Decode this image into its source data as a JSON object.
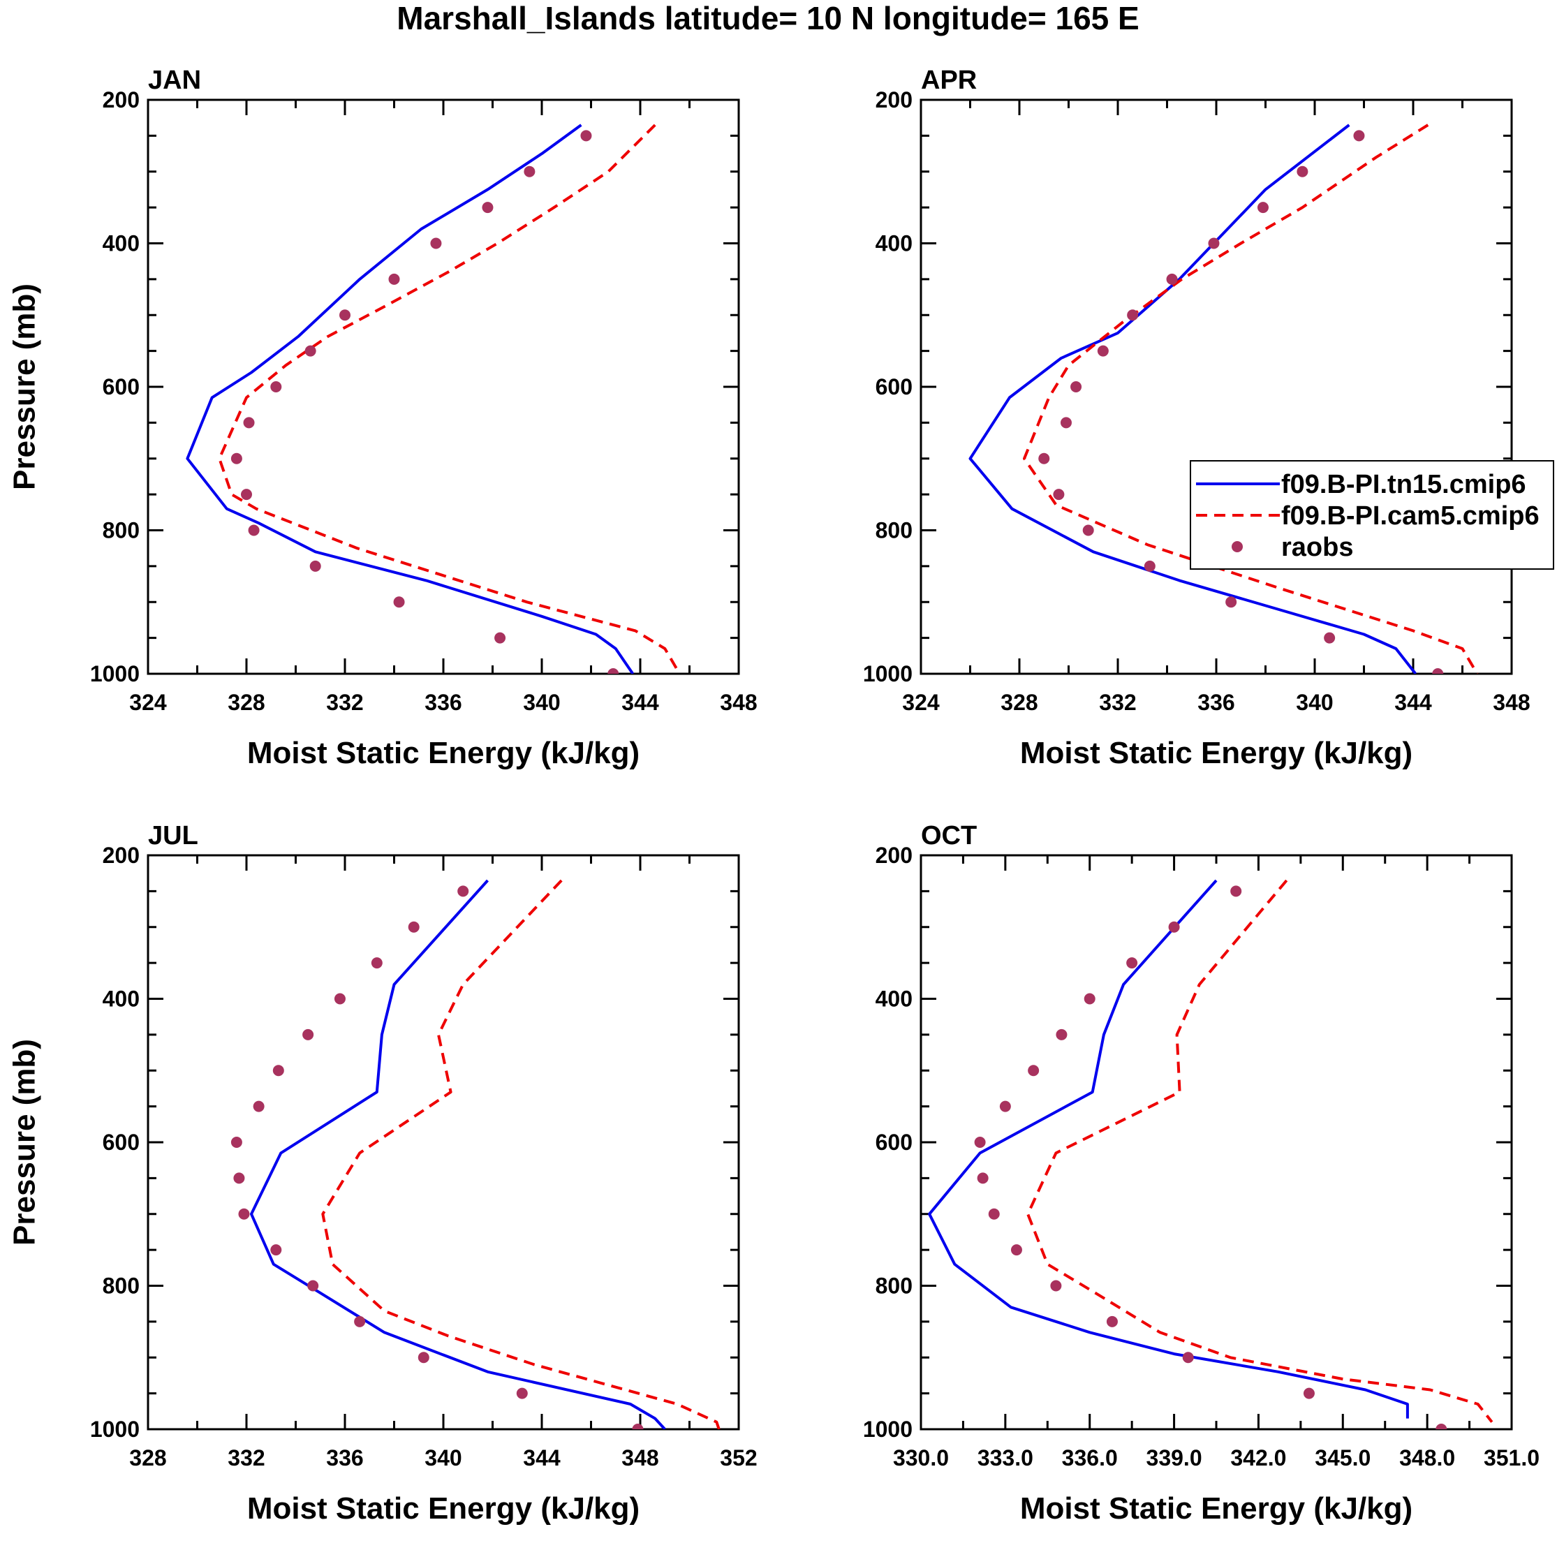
{
  "figure_title": "Marshall_Islands  latitude= 10 N longitude= 165 E",
  "legend": {
    "entries": [
      {
        "label": "f09.B-PI.tn15.cmip6",
        "style": "solid",
        "color": "#0000ee"
      },
      {
        "label": "f09.B-PI.cam5.cmip6",
        "style": "dashed",
        "color": "#ee0000"
      },
      {
        "label": "raobs",
        "style": "marker",
        "color": "#a8325e"
      }
    ]
  },
  "chart_data": [
    {
      "type": "line",
      "title": "JAN",
      "xlabel": "Moist Static Energy (kJ/kg)",
      "ylabel": "Pressure (mb)",
      "xlim": [
        324,
        348
      ],
      "ylim": [
        200,
        1000
      ],
      "y_inverted": true,
      "xticks": [
        324,
        328,
        332,
        336,
        340,
        344,
        348
      ],
      "xtick_labels": [
        "324",
        "328",
        "332",
        "336",
        "340",
        "344",
        "348"
      ],
      "yticks": [
        200,
        400,
        600,
        800,
        1000
      ],
      "ytick_labels": [
        "200",
        "400",
        "600",
        "800",
        "1000"
      ],
      "series": [
        {
          "name": "f09.B-PI.tn15.cmip6",
          "x": [
            341.6,
            340.0,
            337.8,
            335.1,
            332.6,
            330.1,
            328.2,
            326.6,
            325.6,
            327.2,
            328.5,
            330.8,
            335.3,
            340.0,
            342.2,
            343.0,
            343.7
          ],
          "y": [
            235,
            275,
            325,
            380,
            450,
            530,
            580,
            615,
            700,
            770,
            790,
            830,
            870,
            920,
            945,
            965,
            1000
          ]
        },
        {
          "name": "f09.B-PI.cam5.cmip6",
          "x": [
            344.6,
            342.7,
            340.5,
            338.2,
            336.2,
            333.5,
            331.3,
            329.6,
            328.0,
            326.9,
            327.4,
            328.4,
            332.5,
            339.4,
            343.8,
            345.0,
            345.6
          ],
          "y": [
            235,
            300,
            350,
            400,
            440,
            490,
            530,
            570,
            615,
            700,
            750,
            770,
            825,
            900,
            940,
            965,
            1000
          ]
        },
        {
          "name": "raobs",
          "x": [
            341.8,
            339.5,
            337.8,
            335.7,
            334.0,
            332.0,
            330.6,
            329.2,
            328.1,
            327.6,
            328.0,
            328.3,
            330.8,
            334.2,
            338.3,
            342.9
          ],
          "y": [
            250,
            300,
            350,
            400,
            450,
            500,
            550,
            600,
            650,
            700,
            750,
            800,
            850,
            900,
            950,
            1000
          ]
        }
      ]
    },
    {
      "type": "line",
      "title": "APR",
      "xlabel": "Moist Static Energy (kJ/kg)",
      "ylabel": "",
      "xlim": [
        324,
        348
      ],
      "ylim": [
        200,
        1000
      ],
      "y_inverted": true,
      "xticks": [
        324,
        328,
        332,
        336,
        340,
        344,
        348
      ],
      "xtick_labels": [
        "324",
        "328",
        "332",
        "336",
        "340",
        "344",
        "348"
      ],
      "yticks": [
        200,
        400,
        600,
        800,
        1000
      ],
      "ytick_labels": [
        "200",
        "400",
        "600",
        "800",
        "1000"
      ],
      "series": [
        {
          "name": "f09.B-PI.tn15.cmip6",
          "x": [
            341.4,
            338.0,
            334.5,
            332.0,
            329.7,
            327.6,
            326.0,
            327.7,
            331.0,
            334.5,
            338.5,
            342.0,
            343.3,
            344.1
          ],
          "y": [
            235,
            325,
            450,
            525,
            560,
            615,
            700,
            770,
            830,
            870,
            910,
            945,
            965,
            1000
          ]
        },
        {
          "name": "f09.B-PI.cam5.cmip6",
          "x": [
            344.6,
            342.5,
            339.5,
            337.0,
            334.6,
            332.2,
            330.0,
            329.2,
            328.2,
            329.5,
            333.2,
            338.5,
            344.0,
            346.0,
            346.6
          ],
          "y": [
            235,
            280,
            350,
            400,
            450,
            510,
            570,
            615,
            700,
            765,
            820,
            880,
            940,
            965,
            1000
          ]
        },
        {
          "name": "raobs",
          "x": [
            341.8,
            339.5,
            337.9,
            335.9,
            334.2,
            332.6,
            331.4,
            330.3,
            329.9,
            329.0,
            329.6,
            330.8,
            333.3,
            336.6,
            340.6,
            345.0
          ],
          "y": [
            250,
            300,
            350,
            400,
            450,
            500,
            550,
            600,
            650,
            700,
            750,
            800,
            850,
            900,
            950,
            1000
          ]
        }
      ]
    },
    {
      "type": "line",
      "title": "JUL",
      "xlabel": "Moist Static Energy (kJ/kg)",
      "ylabel": "Pressure (mb)",
      "xlim": [
        328,
        352
      ],
      "ylim": [
        200,
        1000
      ],
      "y_inverted": true,
      "xticks": [
        328,
        332,
        336,
        340,
        344,
        348,
        352
      ],
      "xtick_labels": [
        "328",
        "332",
        "336",
        "340",
        "344",
        "348",
        "352"
      ],
      "yticks": [
        200,
        400,
        600,
        800,
        1000
      ],
      "ytick_labels": [
        "200",
        "400",
        "600",
        "800",
        "1000"
      ],
      "series": [
        {
          "name": "f09.B-PI.tn15.cmip6",
          "x": [
            341.8,
            338.0,
            337.5,
            337.3,
            333.4,
            332.2,
            333.1,
            335.0,
            337.6,
            341.8,
            347.6,
            348.6,
            349.0
          ],
          "y": [
            235,
            380,
            450,
            530,
            615,
            700,
            770,
            810,
            865,
            920,
            965,
            985,
            1000
          ]
        },
        {
          "name": "f09.B-PI.cam5.cmip6",
          "x": [
            344.8,
            340.8,
            339.8,
            340.3,
            336.6,
            335.1,
            335.5,
            337.6,
            340.2,
            343.7,
            349.5,
            351.1,
            351.2
          ],
          "y": [
            235,
            380,
            450,
            530,
            615,
            700,
            770,
            835,
            870,
            910,
            965,
            990,
            1000
          ]
        },
        {
          "name": "raobs",
          "x": [
            340.8,
            338.8,
            337.3,
            335.8,
            334.5,
            333.3,
            332.5,
            331.6,
            331.7,
            331.9,
            333.2,
            334.7,
            336.6,
            339.2,
            343.2,
            347.9
          ],
          "y": [
            250,
            300,
            350,
            400,
            450,
            500,
            550,
            600,
            650,
            700,
            750,
            800,
            850,
            900,
            950,
            1000
          ]
        }
      ]
    },
    {
      "type": "line",
      "title": "OCT",
      "xlabel": "Moist Static Energy (kJ/kg)",
      "ylabel": "",
      "xlim": [
        330,
        351
      ],
      "ylim": [
        200,
        1000
      ],
      "y_inverted": true,
      "xticks": [
        330,
        333,
        336,
        339,
        342,
        345,
        348,
        351
      ],
      "xtick_labels": [
        "330.0",
        "333.0",
        "336.0",
        "339.0",
        "342.0",
        "345.0",
        "348.0",
        "351.0"
      ],
      "yticks": [
        200,
        400,
        600,
        800,
        1000
      ],
      "ytick_labels": [
        "200",
        "400",
        "600",
        "800",
        "1000"
      ],
      "series": [
        {
          "name": "f09.B-PI.tn15.cmip6",
          "x": [
            340.5,
            337.2,
            336.5,
            336.1,
            332.1,
            330.3,
            331.2,
            333.2,
            336.0,
            339.0,
            342.7,
            345.8,
            347.3,
            347.3
          ],
          "y": [
            235,
            380,
            450,
            530,
            615,
            700,
            770,
            830,
            865,
            895,
            920,
            945,
            965,
            985
          ]
        },
        {
          "name": "f09.B-PI.cam5.cmip6",
          "x": [
            343.0,
            339.9,
            339.1,
            339.2,
            334.8,
            333.8,
            334.5,
            336.2,
            338.5,
            341.0,
            345.0,
            348.1,
            349.8,
            350.3
          ],
          "y": [
            235,
            380,
            450,
            530,
            615,
            700,
            770,
            810,
            865,
            900,
            930,
            945,
            965,
            990
          ]
        },
        {
          "name": "raobs",
          "x": [
            341.2,
            339.0,
            337.5,
            336.0,
            335.0,
            334.0,
            333.0,
            332.1,
            332.2,
            332.6,
            333.4,
            334.8,
            336.8,
            339.5,
            343.8,
            348.5
          ],
          "y": [
            250,
            300,
            350,
            400,
            450,
            500,
            550,
            600,
            650,
            700,
            750,
            800,
            850,
            900,
            950,
            1000
          ]
        }
      ]
    }
  ]
}
